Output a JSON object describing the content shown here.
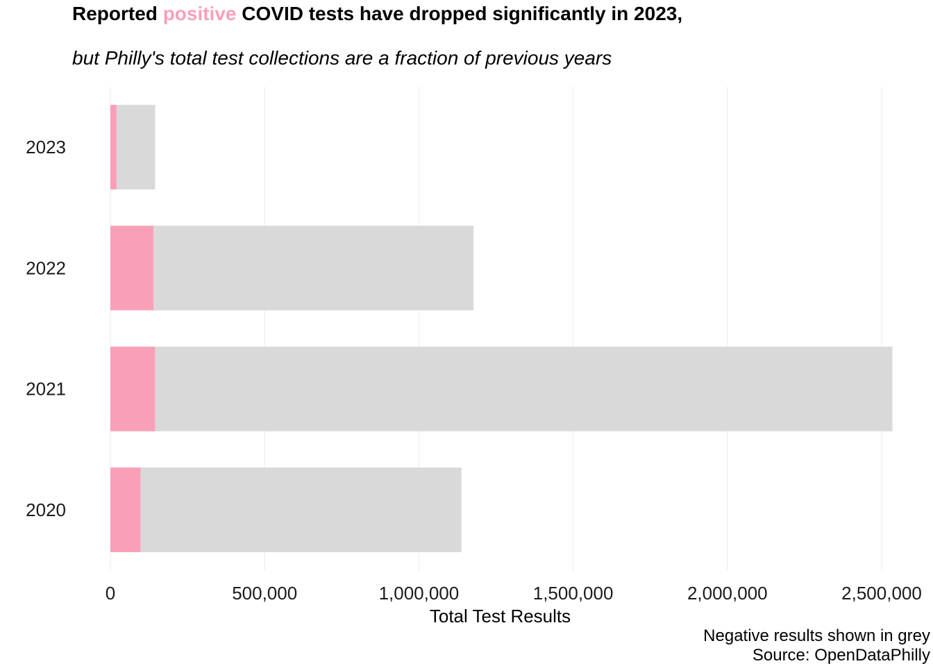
{
  "title": {
    "prefix": "Reported ",
    "highlight": "positive",
    "suffix": " COVID tests have dropped significantly in 2023,"
  },
  "subtitle": "but Philly's total test collections are a fraction of previous years",
  "caption": {
    "line1": "Negative results shown in grey",
    "line2": "Source: OpenDataPhilly"
  },
  "colors": {
    "positive": "#f9a0b8",
    "negative": "#d9d9d9",
    "grid": "#ebebeb"
  },
  "chart_data": {
    "type": "bar",
    "orientation": "horizontal",
    "stacked": true,
    "categories": [
      "2023",
      "2022",
      "2021",
      "2020"
    ],
    "series": [
      {
        "values": [
          20000,
          140000,
          145000,
          98000
        ]
      },
      {
        "values": [
          125000,
          1037000,
          2390000,
          1040000
        ]
      }
    ],
    "xlabel": "Total Test Results",
    "ylabel": "",
    "xlim": [
      0,
      2500000
    ],
    "xticks": [
      0,
      500000,
      1000000,
      1500000,
      2000000,
      2500000
    ],
    "xtick_labels": [
      "0",
      "500,000",
      "1,000,000",
      "1,500,000",
      "2,000,000",
      "2,500,000"
    ],
    "grid": true,
    "legend": "none"
  }
}
